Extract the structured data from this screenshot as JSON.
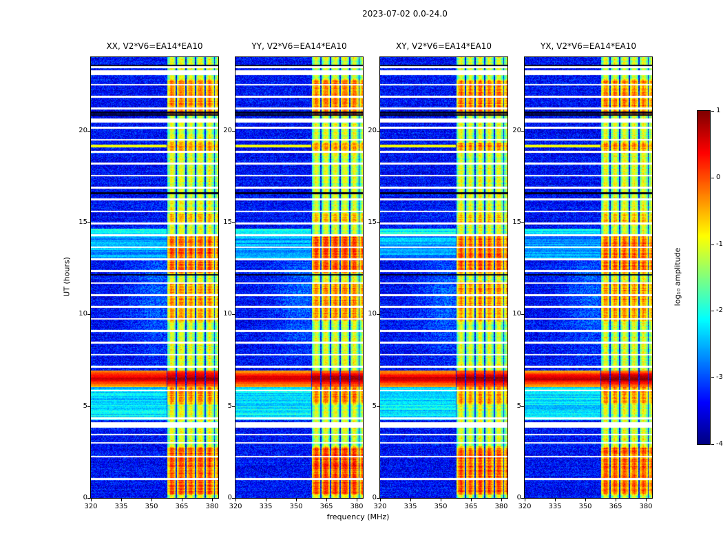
{
  "title": "2023-07-02 0.0-24.0",
  "chart_data": {
    "type": "heatmap",
    "title": "2023-07-02 0.0-24.0",
    "xlabel": "frequency (MHz)",
    "ylabel": "UT (hours)",
    "xlim": [
      320,
      383
    ],
    "ylim": [
      0,
      24
    ],
    "x_ticks": [
      320,
      335,
      350,
      365,
      380
    ],
    "y_ticks": [
      0,
      5,
      10,
      15,
      20
    ],
    "colormap": "jet",
    "panels": [
      {
        "title": "XX, V2*V6=EA14*EA10",
        "seed": 11,
        "gain": 1.0
      },
      {
        "title": "YY, V2*V6=EA14*EA10",
        "seed": 23,
        "gain": 1.15
      },
      {
        "title": "XY, V2*V6=EA14*EA10",
        "seed": 37,
        "gain": 1.05
      },
      {
        "title": "YX, V2*V6=EA14*EA10",
        "seed": 51,
        "gain": 1.0
      }
    ],
    "colorbar": {
      "label": "log₁₀ amplitude",
      "ticks": [
        1,
        0,
        -1,
        -2,
        -3,
        -4
      ],
      "vmin": -4,
      "vmax": 1
    },
    "features": {
      "background_level": -3.35,
      "background_noise": 0.5,
      "rfi_band": {
        "f_start": 357.5,
        "f_end": 383,
        "stripe_period_mhz": 4.7,
        "base_level": -1.35
      },
      "band_events": [
        {
          "t0": 0.25,
          "t1": 2.7,
          "boost": 0.95
        },
        {
          "t0": 5.2,
          "t1": 6.1,
          "boost": 0.7
        },
        {
          "t0": 9.7,
          "t1": 11.7,
          "boost": 0.65
        },
        {
          "t0": 12.3,
          "t1": 14.2,
          "boost": 0.9
        },
        {
          "t0": 15.0,
          "t1": 15.45,
          "boost": 0.45
        },
        {
          "t0": 18.95,
          "t1": 19.3,
          "boost": 0.6
        },
        {
          "t0": 20.9,
          "t1": 22.7,
          "boost": 0.75
        }
      ],
      "broadband_burst": {
        "t0": 6.1,
        "t1": 6.9,
        "t_peak": 6.5,
        "peak_level": 0.75
      },
      "thin_bursts": [
        {
          "t": 19.15,
          "w": 0.14,
          "level": -0.9
        }
      ],
      "background_events": [
        {
          "t0": 4.3,
          "t1": 6.1,
          "level": -2.25
        },
        {
          "t0": 13.0,
          "t1": 14.2,
          "level": -2.6
        },
        {
          "t0": 14.35,
          "t1": 14.6,
          "level": -2.1
        }
      ],
      "gaps": [
        [
          1.02,
          0.1
        ],
        [
          2.25,
          0.1
        ],
        [
          3.0,
          0.1
        ],
        [
          3.45,
          0.1
        ],
        [
          3.98,
          0.3
        ],
        [
          4.32,
          0.12
        ],
        [
          5.85,
          0.1
        ],
        [
          7.15,
          0.1
        ],
        [
          7.8,
          0.1
        ],
        [
          8.45,
          0.1
        ],
        [
          9.1,
          0.1
        ],
        [
          9.75,
          0.1
        ],
        [
          10.4,
          0.1
        ],
        [
          11.05,
          0.1
        ],
        [
          11.7,
          0.1
        ],
        [
          12.35,
          0.1
        ],
        [
          13.0,
          0.1
        ],
        [
          13.65,
          0.1
        ],
        [
          14.3,
          0.1
        ],
        [
          14.95,
          0.12
        ],
        [
          15.6,
          0.1
        ],
        [
          16.25,
          0.1
        ],
        [
          16.9,
          0.1
        ],
        [
          17.55,
          0.1
        ],
        [
          18.2,
          0.1
        ],
        [
          18.85,
          0.1
        ],
        [
          19.5,
          0.1
        ],
        [
          20.15,
          0.1
        ],
        [
          20.55,
          0.2
        ],
        [
          21.2,
          0.1
        ],
        [
          21.85,
          0.1
        ],
        [
          22.5,
          0.1
        ],
        [
          23.15,
          0.25
        ],
        [
          23.45,
          0.1
        ]
      ],
      "dark_rows": [
        12.15,
        16.6,
        20.85,
        20.98,
        23.55
      ],
      "blob": {
        "f_center": 353,
        "t_center": 11,
        "f_sigma": 9,
        "t_sigma": 2.2,
        "level": 0.45
      }
    }
  }
}
